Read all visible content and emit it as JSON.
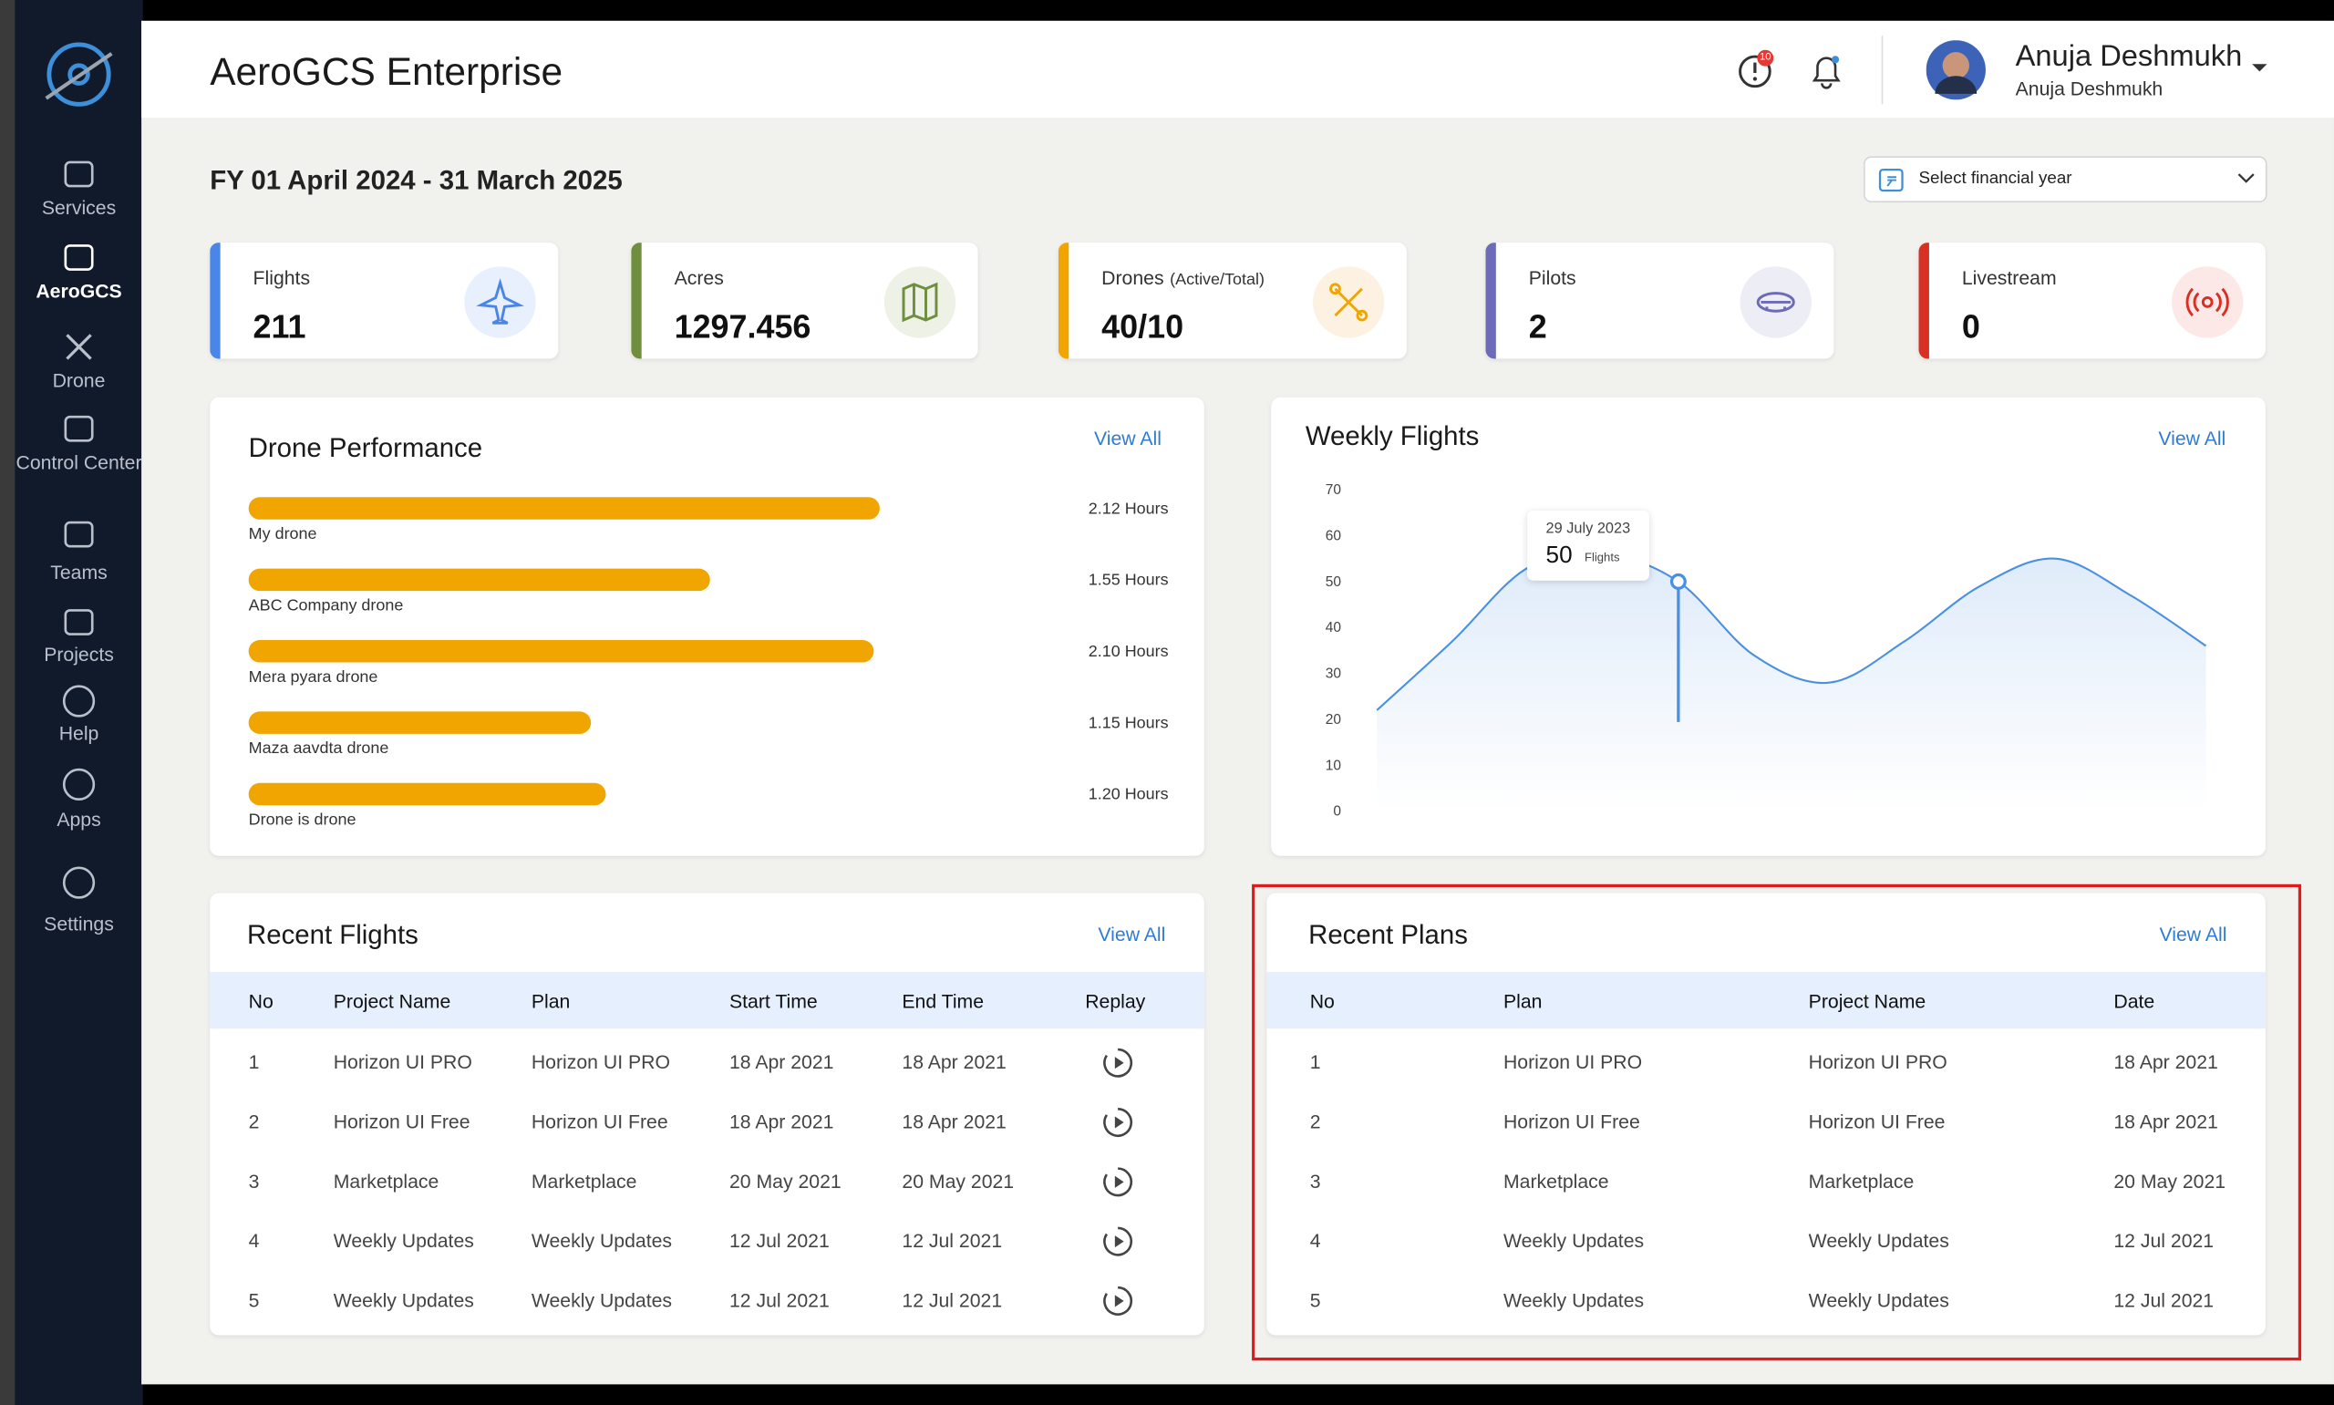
{
  "header": {
    "title": "AeroGCS Enterprise",
    "notification_count": "10",
    "user_name": "Anuja Deshmukh",
    "user_subtitle": "Anuja Deshmukh"
  },
  "sidebar": {
    "items": [
      "Services",
      "AeroGCS",
      "Drone",
      "Control Center",
      "Teams",
      "Projects",
      "Help",
      "Apps",
      "Settings"
    ]
  },
  "period": "FY 01 April 2024 - 31 March 2025",
  "year_select": "Select financial year",
  "stats": [
    {
      "label": "Flights",
      "value": 211
    },
    {
      "label": "Acres",
      "value": 1297.456
    },
    {
      "label": "Drones",
      "note": "(Active/Total)",
      "value": "40/10"
    },
    {
      "label": "Pilots",
      "value": 2
    },
    {
      "label": "Livestream",
      "value": 0
    }
  ],
  "chart_data": [
    {
      "type": "bar",
      "title": "Drone Performance",
      "link": "View All",
      "categories": [
        "My drone",
        "ABC Company drone",
        "Mera pyara drone",
        "Maza aavdta drone",
        "Drone is drone"
      ],
      "values": [
        2.12,
        1.55,
        2.1,
        1.15,
        1.2
      ],
      "value_labels": [
        "2.12 Hours",
        "1.55 Hours",
        "2.10 Hours",
        "1.15 Hours",
        "1.20 Hours"
      ],
      "color": "#f0a500"
    },
    {
      "type": "line",
      "title": "Weekly Flights",
      "link": "View All",
      "categories": [
        null,
        null,
        null,
        null,
        null,
        null,
        null,
        null,
        null,
        null,
        null,
        null
      ],
      "values": [
        22,
        37,
        53,
        56,
        50,
        34,
        28,
        37,
        49,
        55,
        47,
        36
      ],
      "color": "#4a90e2",
      "ylim": [
        0,
        70
      ],
      "yticks": [
        0,
        10,
        20,
        30,
        40,
        50,
        60,
        70
      ],
      "tooltip": {
        "index": 4,
        "date": "29 July 2023",
        "unit": "Flights"
      }
    }
  ],
  "recent_flights": {
    "title": "Recent Flights",
    "link": "View All",
    "columns": [
      "No",
      "Project Name",
      "Plan",
      "Start Time",
      "End Time",
      "Replay"
    ],
    "rows": [
      [
        "1",
        "Horizon UI PRO",
        "Horizon UI PRO",
        "18 Apr 2021",
        "18 Apr 2021"
      ],
      [
        "2",
        "Horizon UI Free",
        "Horizon UI Free",
        "18 Apr 2021",
        "18 Apr 2021"
      ],
      [
        "3",
        "Marketplace",
        "Marketplace",
        "20 May 2021",
        "20 May 2021"
      ],
      [
        "4",
        "Weekly Updates",
        "Weekly Updates",
        "12 Jul 2021",
        "12 Jul 2021"
      ],
      [
        "5",
        "Weekly Updates",
        "Weekly Updates",
        "12 Jul 2021",
        "12 Jul 2021"
      ]
    ]
  },
  "recent_plans": {
    "title": "Recent Plans",
    "link": "View All",
    "columns": [
      "No",
      "Plan",
      "Project Name",
      "Date"
    ],
    "rows": [
      [
        "1",
        "Horizon UI PRO",
        "Horizon UI PRO",
        "18 Apr 2021"
      ],
      [
        "2",
        "Horizon UI Free",
        "Horizon UI Free",
        "18 Apr 2021"
      ],
      [
        "3",
        "Marketplace",
        "Marketplace",
        "20 May 2021"
      ],
      [
        "4",
        "Weekly Updates",
        "Weekly Updates",
        "12 Jul 2021"
      ],
      [
        "5",
        "Weekly Updates",
        "Weekly Updates",
        "12 Jul 2021"
      ]
    ]
  }
}
